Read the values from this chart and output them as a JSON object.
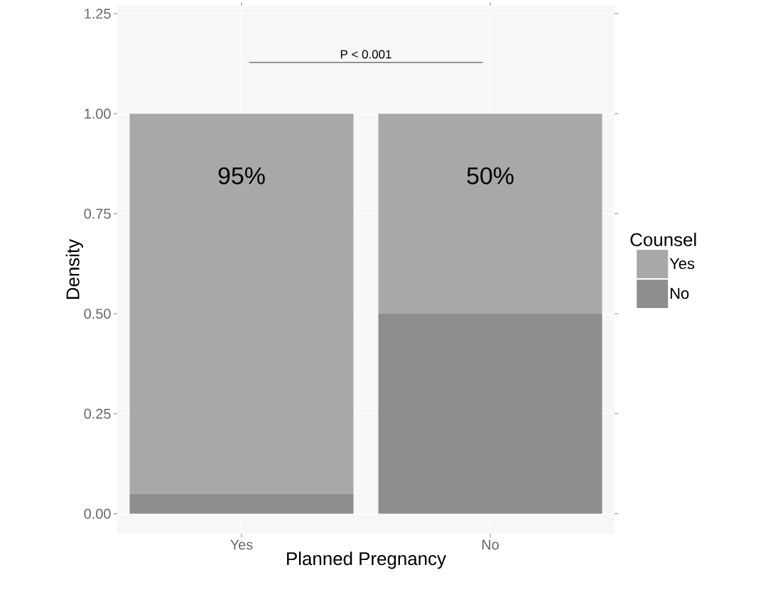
{
  "chart_data": {
    "type": "bar",
    "stacked": true,
    "xlabel": "Planned Pregnancy",
    "ylabel": "Density",
    "legend_title": "Counsel",
    "legend": "right",
    "grid": true,
    "categories": [
      "Yes",
      "No"
    ],
    "series": [
      {
        "name": "No",
        "color": "#8e8e8e",
        "values": [
          0.05,
          0.5
        ]
      },
      {
        "name": "Yes",
        "color": "#a8a8a8",
        "values": [
          0.95,
          0.5
        ],
        "value_labels": [
          "95%",
          "50%"
        ]
      }
    ],
    "ylim": [
      -0.05,
      1.27
    ],
    "yticks": [
      {
        "value": 0,
        "label": "0.00"
      },
      {
        "value": 0.25,
        "label": "0.25"
      },
      {
        "value": 0.5,
        "label": "0.50"
      },
      {
        "value": 0.75,
        "label": "0.75"
      },
      {
        "value": 1,
        "label": "1.00"
      },
      {
        "value": 1.25,
        "label": "1.25"
      }
    ],
    "annotations": [
      "P < 0.001"
    ]
  }
}
